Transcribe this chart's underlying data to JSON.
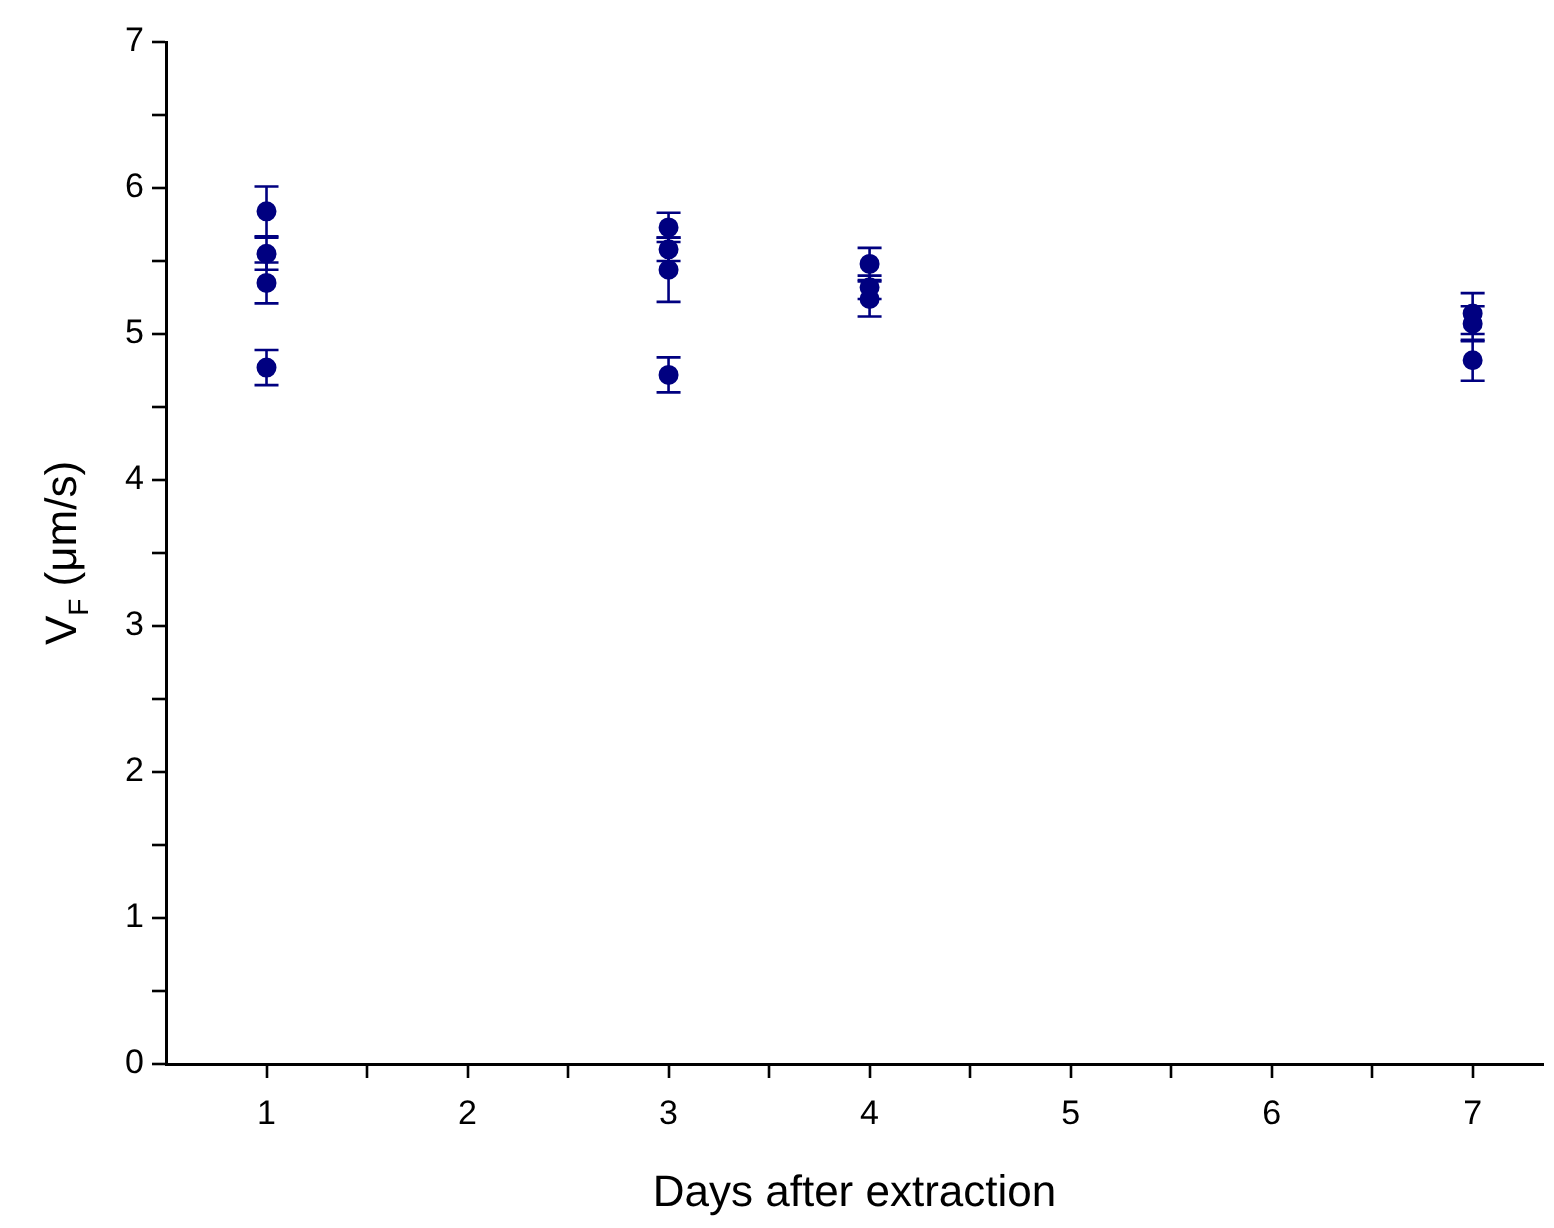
{
  "chart_data": {
    "type": "scatter",
    "xlabel": "Days after extraction",
    "ylabel": "V$_{F}$ (μm/s)",
    "x": [
      1,
      1,
      1,
      1,
      3,
      3,
      3,
      3,
      4,
      4,
      4,
      7,
      7,
      7
    ],
    "values": [
      5.84,
      5.55,
      5.35,
      4.77,
      5.73,
      5.58,
      5.44,
      4.72,
      5.48,
      5.32,
      5.24,
      5.14,
      5.07,
      4.82
    ],
    "errors": [
      0.17,
      0.11,
      0.14,
      0.12,
      0.1,
      0.08,
      0.22,
      0.12,
      0.11,
      0.08,
      0.12,
      0.14,
      0.12,
      0.14
    ],
    "color": "#000080",
    "marker": "circle",
    "xlim": [
      0.5,
      7.35
    ],
    "xticks": [
      1,
      {
        "value": 1.5,
        "label": null
      },
      2,
      {
        "value": 2.5,
        "label": null
      },
      3,
      {
        "value": 3.5,
        "label": null
      },
      4,
      {
        "value": 4.5,
        "label": null
      },
      5,
      {
        "value": 5.5,
        "label": null
      },
      6,
      {
        "value": 6.5,
        "label": null
      },
      7
    ],
    "ylim": [
      0,
      7
    ],
    "yticks": [
      0,
      {
        "value": 0.5,
        "label": null
      },
      1,
      {
        "value": 1.5,
        "label": null
      },
      2,
      {
        "value": 2.5,
        "label": null
      },
      3,
      {
        "value": 3.5,
        "label": null
      },
      4,
      {
        "value": 4.5,
        "label": null
      },
      5,
      {
        "value": 5.5,
        "label": null
      },
      6,
      {
        "value": 6.5,
        "label": null
      },
      7
    ],
    "grid": false,
    "legend": false
  }
}
